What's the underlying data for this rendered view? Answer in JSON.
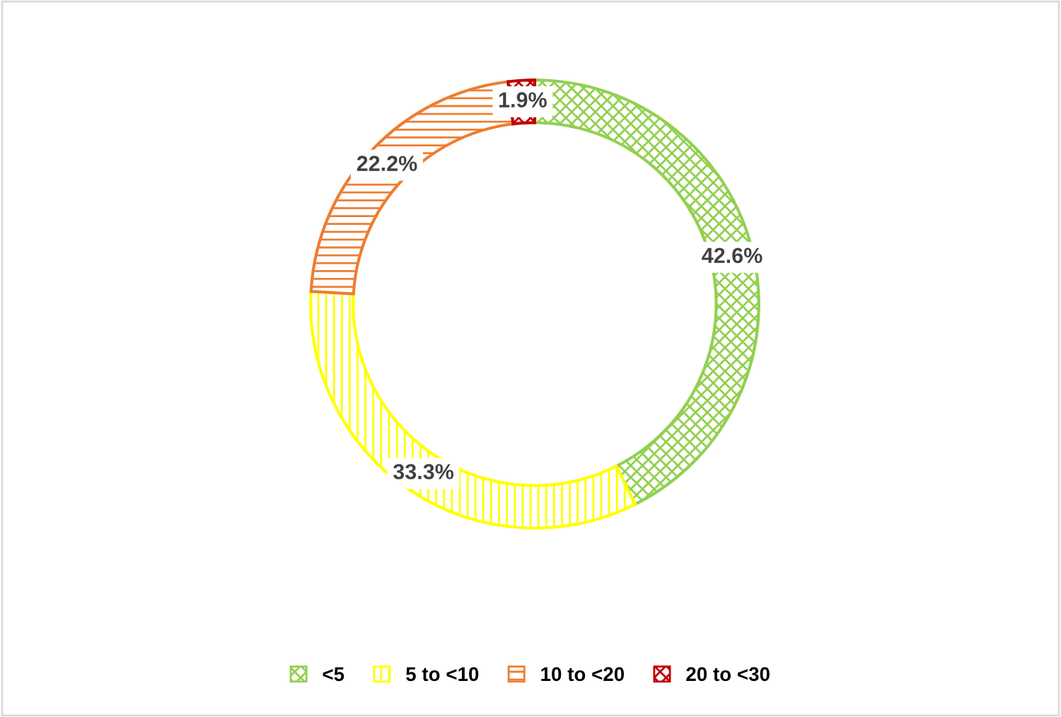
{
  "chart_data": {
    "type": "donut",
    "categories": [
      "<5",
      "5 to <10",
      "10 to <20",
      "20 to <30"
    ],
    "values": [
      42.6,
      33.3,
      22.2,
      1.9
    ],
    "colors": [
      "#92d050",
      "#ffff00",
      "#ed7d31",
      "#c00000"
    ],
    "value_labels": [
      "42.6%",
      "33.3%",
      "22.2%",
      "1.9%"
    ],
    "legend": "bottom"
  }
}
